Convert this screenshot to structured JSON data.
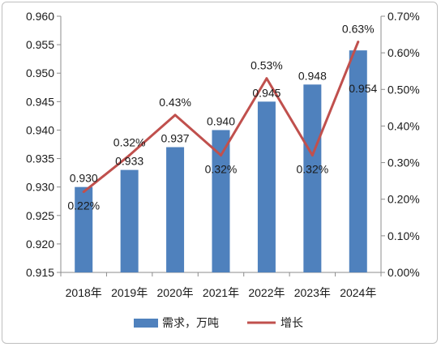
{
  "chart_data": {
    "type": "bar+line",
    "categories": [
      "2018年",
      "2019年",
      "2020年",
      "2021年",
      "2022年",
      "2023年",
      "2024年"
    ],
    "series": [
      {
        "name": "需求，万吨",
        "type": "bar",
        "axis": "left",
        "values": [
          0.93,
          0.933,
          0.937,
          0.94,
          0.945,
          0.948,
          0.954
        ],
        "labels": [
          "0.930",
          "0.933",
          "0.937",
          "0.940",
          "0.945",
          "0.948",
          "0.954"
        ],
        "color": "#4f81bd"
      },
      {
        "name": "增长",
        "type": "line",
        "axis": "right",
        "values": [
          0.22,
          0.32,
          0.43,
          0.32,
          0.53,
          0.32,
          0.63
        ],
        "labels": [
          "0.22%",
          "0.32%",
          "0.43%",
          "0.32%",
          "0.53%",
          "0.32%",
          "0.63%"
        ],
        "color": "#c0504d"
      }
    ],
    "y_left": {
      "range": [
        0.915,
        0.96
      ],
      "ticks": [
        "0.915",
        "0.920",
        "0.925",
        "0.930",
        "0.935",
        "0.940",
        "0.945",
        "0.950",
        "0.955",
        "0.960"
      ]
    },
    "y_right": {
      "range": [
        0.0,
        0.7
      ],
      "ticks": [
        "0.00%",
        "0.10%",
        "0.20%",
        "0.30%",
        "0.40%",
        "0.50%",
        "0.60%",
        "0.70%"
      ]
    },
    "grid": false,
    "legend": "bottom"
  }
}
